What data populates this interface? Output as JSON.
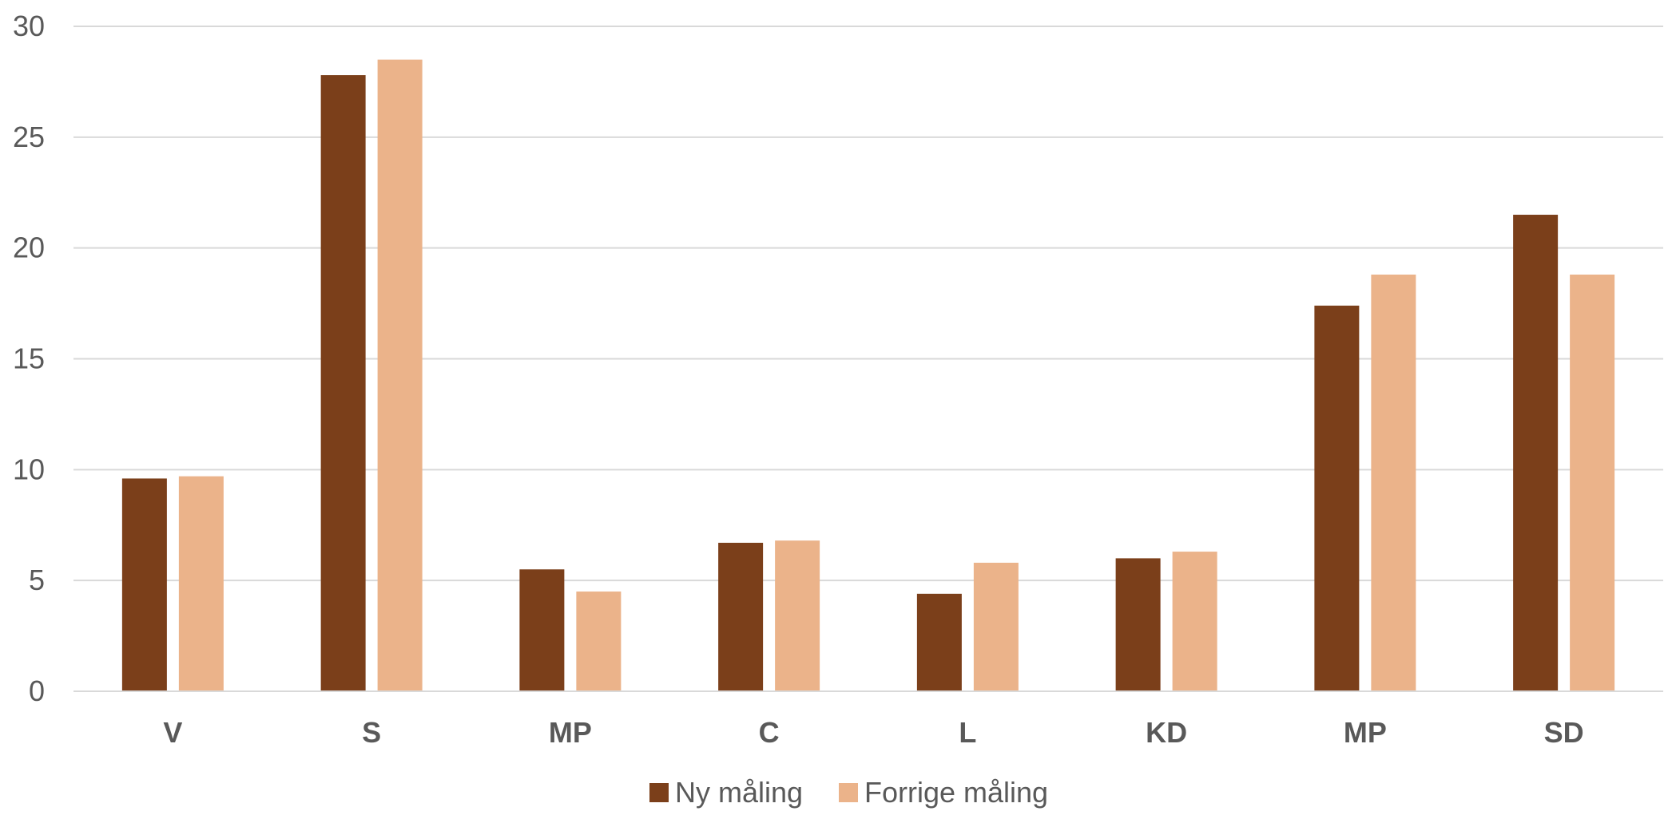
{
  "chart_data": {
    "type": "bar",
    "title": "",
    "xlabel": "",
    "ylabel": "",
    "categories": [
      "V",
      "S",
      "MP",
      "C",
      "L",
      "KD",
      "MP",
      "SD"
    ],
    "series": [
      {
        "name": "Ny måling",
        "color": "#7b3f1a",
        "values": [
          9.6,
          27.8,
          5.5,
          6.7,
          4.4,
          6.0,
          17.4,
          21.5
        ]
      },
      {
        "name": "Forrige måling",
        "color": "#ebb38a",
        "values": [
          9.7,
          28.5,
          4.5,
          6.8,
          5.8,
          6.3,
          18.8,
          18.8
        ]
      }
    ],
    "ylim": [
      0,
      30
    ],
    "yticks": [
      "0",
      "5",
      "10",
      "15",
      "20",
      "25",
      "30"
    ],
    "grid": true,
    "legend_position": "bottom-center"
  }
}
